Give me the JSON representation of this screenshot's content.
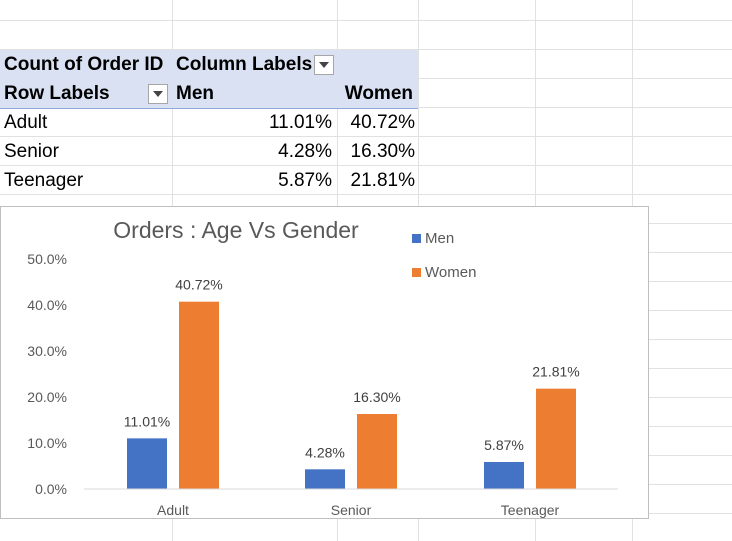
{
  "pivot": {
    "header1": {
      "measure": "Count of Order ID",
      "column_labels": "Column Labels"
    },
    "header2": {
      "row_labels": "Row Labels",
      "men": "Men",
      "women": "Women"
    },
    "rows": [
      {
        "label": "Adult",
        "men": "11.01%",
        "women": "40.72%"
      },
      {
        "label": "Senior",
        "men": "4.28%",
        "women": "16.30%"
      },
      {
        "label": "Teenager",
        "men": "5.87%",
        "women": "21.81%"
      }
    ]
  },
  "chart_data": {
    "type": "bar",
    "title": "Orders : Age Vs Gender",
    "categories": [
      "Adult",
      "Senior",
      "Teenager"
    ],
    "series": [
      {
        "name": "Men",
        "color": "#4472c4",
        "values": [
          11.01,
          4.28,
          5.87
        ],
        "labels": [
          "11.01%",
          "4.28%",
          "5.87%"
        ]
      },
      {
        "name": "Women",
        "color": "#ed7d31",
        "values": [
          40.72,
          16.3,
          21.81
        ],
        "labels": [
          "40.72%",
          "16.30%",
          "21.81%"
        ]
      }
    ],
    "ylim": [
      0,
      50
    ],
    "yticks": [
      "0.0%",
      "10.0%",
      "20.0%",
      "30.0%",
      "40.0%",
      "50.0%"
    ],
    "grid": false,
    "legend": "top-right"
  }
}
